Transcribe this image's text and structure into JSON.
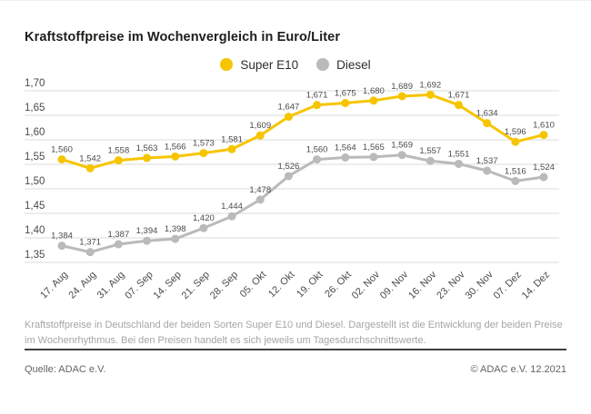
{
  "header": {
    "title": "Kraftstoffpreise im Wochenvergleich in Euro/Liter"
  },
  "chart_data": {
    "type": "line",
    "title": "Kraftstoffpreise im Wochenvergleich in Euro/Liter",
    "categories": [
      "17. Aug",
      "24. Aug",
      "31. Aug",
      "07. Sep",
      "14. Sep",
      "21. Sep",
      "28. Sep",
      "05. Okt",
      "12. Okt",
      "19. Okt",
      "26. Okt",
      "02. Nov",
      "09. Nov",
      "16. Nov",
      "23. Nov",
      "30. Nov",
      "07. Dez",
      "14. Dez"
    ],
    "series": [
      {
        "name": "Super E10",
        "color": "#F6C500",
        "values": [
          1.56,
          1.542,
          1.558,
          1.563,
          1.566,
          1.573,
          1.581,
          1.609,
          1.647,
          1.671,
          1.675,
          1.68,
          1.689,
          1.692,
          1.671,
          1.634,
          1.596,
          1.61
        ]
      },
      {
        "name": "Diesel",
        "color": "#BABABA",
        "values": [
          1.384,
          1.371,
          1.387,
          1.394,
          1.398,
          1.42,
          1.444,
          1.478,
          1.526,
          1.56,
          1.564,
          1.565,
          1.569,
          1.557,
          1.551,
          1.537,
          1.516,
          1.524
        ]
      }
    ],
    "ylim": [
      1.35,
      1.7
    ],
    "ytick_step": 0.05,
    "grid": true,
    "legend_position": "top-center",
    "value_labels": true,
    "decimal_separator": ",",
    "unit": "Euro/Liter"
  },
  "footnote": "Kraftstoffpreise in Deutschland der beiden Sorten Super E10 und Diesel. Dargestellt ist die Entwicklung der beiden Preise im Wochenrhythmus. Bei den Preisen handelt es sich jeweils um Tagesdurchschnittswerte.",
  "footer": {
    "source": "Quelle: ADAC e.V.",
    "copyright": "© ADAC e.V. 12.2021"
  },
  "colors": {
    "grid": "#DBDBDB",
    "axis_label": "#4B4B4B",
    "value_label": "#4B4B4B",
    "title": "#1D1D1B"
  }
}
